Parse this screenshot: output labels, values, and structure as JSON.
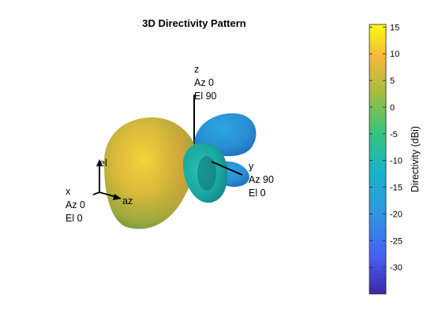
{
  "chart_data": {
    "type": "3d-surface",
    "title": "3D Directivity Pattern",
    "colorbar": {
      "label": "Directivity (dBi)",
      "min": -35,
      "max": 15.5,
      "ticks": [
        15,
        10,
        5,
        0,
        -5,
        -10,
        -15,
        -20,
        -25,
        -30
      ],
      "colormap": [
        "#3e26a8",
        "#4560f5",
        "#2f96e1",
        "#16b3c9",
        "#38c47a",
        "#a6bd3d",
        "#f6b83a",
        "#f9fb0e"
      ]
    },
    "axes": {
      "x": {
        "name": "x",
        "az": "Az 0",
        "el": "El 0"
      },
      "y": {
        "name": "y",
        "az": "Az 90",
        "el": "El 0"
      },
      "z": {
        "name": "z",
        "az": "Az 0",
        "el": "El 90"
      },
      "triad": {
        "az": "az",
        "el": "el"
      }
    },
    "peak_directivity_dBi": 15,
    "grid": false
  }
}
